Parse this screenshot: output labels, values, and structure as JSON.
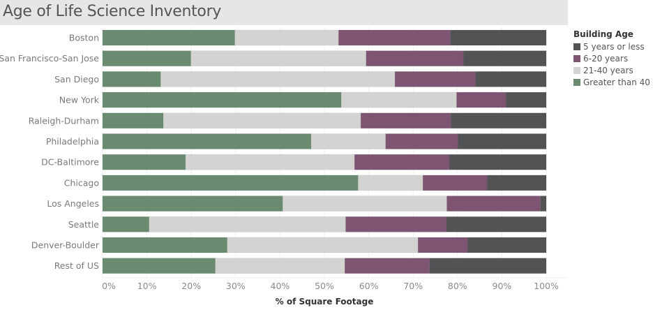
{
  "chart_data": {
    "type": "bar",
    "orientation": "horizontal",
    "stacked": true,
    "title": "Age of Life Science Inventory",
    "xlabel": "% of Square Footage",
    "ylabel": "",
    "xlim": [
      0,
      100
    ],
    "x_ticks": [
      "0%",
      "10%",
      "20%",
      "30%",
      "40%",
      "50%",
      "60%",
      "70%",
      "80%",
      "90%",
      "100%"
    ],
    "grid": true,
    "legend_title": "Building Age",
    "legend_position": "right",
    "categories": [
      "Boston",
      "San Francisco-San Jose",
      "San Diego",
      "New York",
      "Raleigh-Durham",
      "Philadelphia",
      "DC-Baltimore",
      "Chicago",
      "Los Angeles",
      "Seattle",
      "Denver-Boulder",
      "Rest of US"
    ],
    "series": [
      {
        "name": "Greater than 40",
        "color": "#6a8b70",
        "values": [
          29.8,
          19.9,
          13.1,
          53.8,
          13.7,
          47.0,
          18.7,
          57.6,
          40.6,
          10.5,
          28.1,
          25.4
        ]
      },
      {
        "name": "21-40 years",
        "color": "#d3d3d1",
        "values": [
          23.4,
          39.5,
          52.8,
          26.0,
          44.5,
          16.8,
          38.1,
          14.6,
          37.0,
          44.3,
          43.0,
          29.2
        ]
      },
      {
        "name": "6-20 years",
        "color": "#7e5473",
        "values": [
          25.2,
          21.9,
          18.1,
          11.1,
          20.3,
          16.3,
          21.3,
          14.5,
          21.1,
          22.7,
          11.2,
          19.1
        ]
      },
      {
        "name": "5 years or less",
        "color": "#535356",
        "values": [
          21.6,
          18.7,
          16.0,
          9.1,
          21.5,
          19.9,
          21.9,
          13.3,
          1.3,
          22.5,
          17.7,
          26.3
        ]
      }
    ],
    "legend_order": [
      "5 years or less",
      "6-20 years",
      "21-40 years",
      "Greater than 40"
    ]
  }
}
